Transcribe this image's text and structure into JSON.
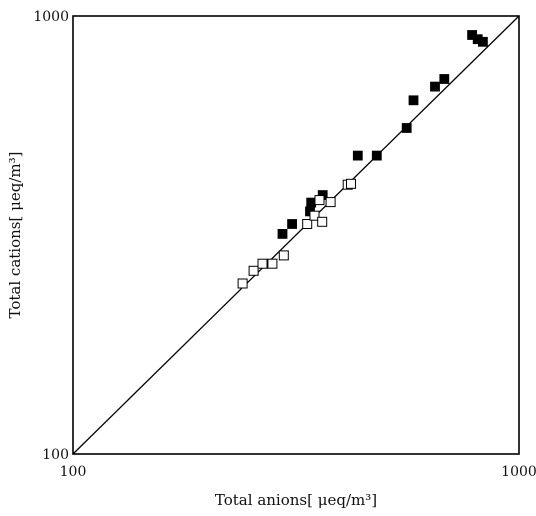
{
  "chart_data": {
    "type": "scatter",
    "title": "",
    "xlabel": "Total anions[ μeq/m³]",
    "ylabel": "Total cations[ μeq/m³]",
    "x_scale": "log",
    "y_scale": "log",
    "xlim": [
      100,
      1000
    ],
    "ylim": [
      100,
      1000
    ],
    "x_tick_labels": [
      "100",
      "1000"
    ],
    "y_tick_labels": [
      "100",
      "1000"
    ],
    "grid": false,
    "legend": "none",
    "reference_line": {
      "type": "1:1",
      "x": [
        100,
        1000
      ],
      "y": [
        100,
        1000
      ]
    },
    "series": [
      {
        "marker": "filled-square",
        "color": "#000000",
        "points": [
          [
            295,
            318
          ],
          [
            310,
            335
          ],
          [
            340,
            358
          ],
          [
            342,
            375
          ],
          [
            363,
            390
          ],
          [
            435,
            480
          ],
          [
            480,
            480
          ],
          [
            560,
            555
          ],
          [
            580,
            642
          ],
          [
            648,
            690
          ],
          [
            680,
            718
          ],
          [
            785,
            905
          ],
          [
            808,
            885
          ],
          [
            830,
            873
          ]
        ]
      },
      {
        "marker": "open-square",
        "color": "#000000",
        "points": [
          [
            240,
            245
          ],
          [
            254,
            262
          ],
          [
            266,
            272
          ],
          [
            280,
            272
          ],
          [
            297,
            284
          ],
          [
            335,
            335
          ],
          [
            348,
            350
          ],
          [
            357,
            380
          ],
          [
            362,
            339
          ],
          [
            378,
            376
          ],
          [
            413,
            412
          ],
          [
            420,
            414
          ]
        ]
      }
    ]
  }
}
